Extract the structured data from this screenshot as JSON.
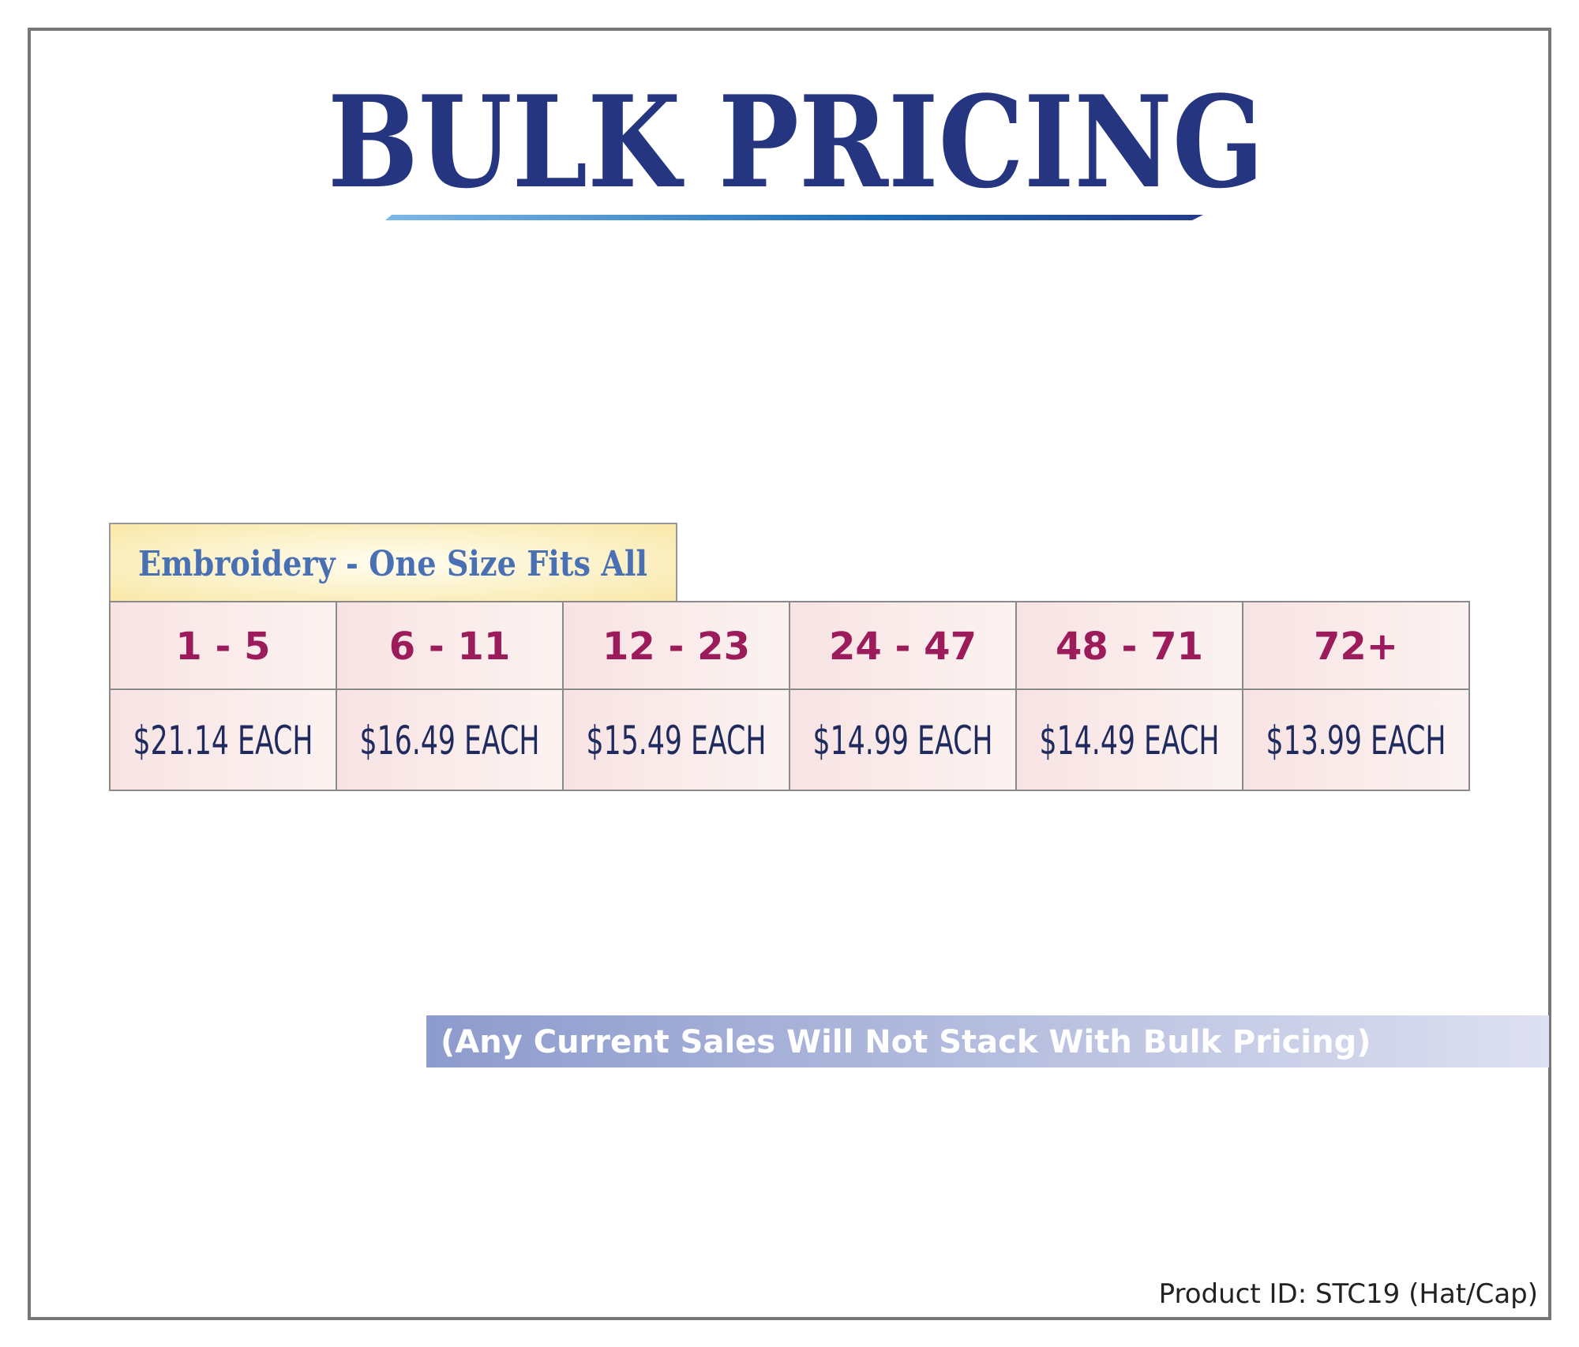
{
  "header": {
    "title": "BULK PRICING"
  },
  "table": {
    "caption": "Embroidery - One Size Fits All",
    "quantities": [
      "1 - 5",
      "6 - 11",
      "12 - 23",
      "24 - 47",
      "48 - 71",
      "72+"
    ],
    "prices": [
      "$21.14 EACH",
      "$16.49 EACH",
      "$15.49 EACH",
      "$14.99 EACH",
      "$14.49 EACH",
      "$13.99 EACH"
    ]
  },
  "note": "(Any Current Sales Will Not Stack With Bulk Pricing)",
  "footer": {
    "product_id": "Product ID: STC19 (Hat/Cap)"
  }
}
